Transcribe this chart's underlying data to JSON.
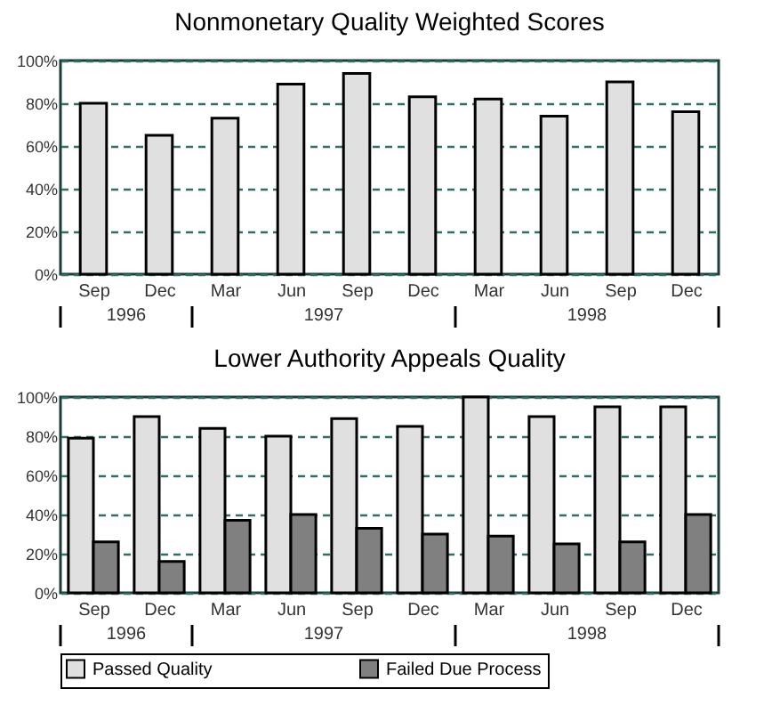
{
  "chart_data": [
    {
      "type": "bar",
      "title": "Nonmonetary Quality Weighted Scores",
      "categories": [
        "Sep",
        "Dec",
        "Mar",
        "Jun",
        "Sep",
        "Dec",
        "Mar",
        "Jun",
        "Sep",
        "Dec"
      ],
      "series": [
        {
          "color": "#e0e0e0",
          "values": [
            80,
            65,
            73,
            89,
            94,
            83,
            82,
            74,
            90,
            76
          ]
        }
      ],
      "ylim": [
        0,
        100
      ],
      "yticks": [
        {
          "value": 0,
          "label": "0%"
        },
        {
          "value": 20,
          "label": "20%"
        },
        {
          "value": 40,
          "label": "40%"
        },
        {
          "value": 60,
          "label": "60%"
        },
        {
          "value": 80,
          "label": "80%"
        },
        {
          "value": 100,
          "label": "100%"
        }
      ],
      "grid": "y",
      "annotations": [
        "1996",
        "1997",
        "1998"
      ]
    },
    {
      "type": "bar",
      "title": "Lower Authority Appeals Quality",
      "categories": [
        "Sep",
        "Dec",
        "Mar",
        "Jun",
        "Sep",
        "Dec",
        "Mar",
        "Jun",
        "Sep",
        "Dec"
      ],
      "series": [
        {
          "name": "Passed Quality",
          "color": "#e0e0e0",
          "values": [
            79,
            90,
            84,
            80,
            89,
            85,
            100,
            90,
            95,
            95
          ]
        },
        {
          "name": "Failed Due Process",
          "color": "#808080",
          "values": [
            26,
            16,
            37,
            40,
            33,
            30,
            29,
            25,
            26,
            40
          ]
        }
      ],
      "ylim": [
        0,
        100
      ],
      "yticks": [
        {
          "value": 0,
          "label": "0%"
        },
        {
          "value": 20,
          "label": "20%"
        },
        {
          "value": 40,
          "label": "40%"
        },
        {
          "value": 60,
          "label": "60%"
        },
        {
          "value": 80,
          "label": "80%"
        },
        {
          "value": 100,
          "label": "100%"
        }
      ],
      "grid": "y",
      "legend": "bottom",
      "annotations": [
        "1996",
        "1997",
        "1998"
      ]
    }
  ]
}
